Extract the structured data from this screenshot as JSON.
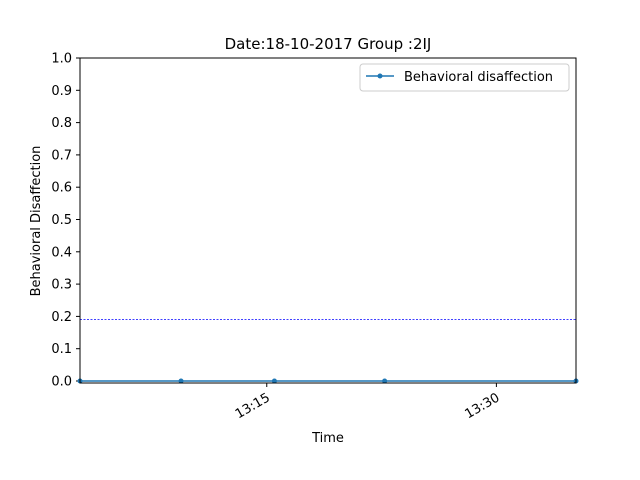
{
  "chart_data": {
    "type": "line",
    "title": "Date:18-10-2017 Group :2IJ",
    "xlabel": "Time",
    "ylabel": "Behavioral Disaffection",
    "x_unit": "time of day",
    "xlim": [
      "13:02:48",
      "13:35:12"
    ],
    "ylim": [
      0.0,
      1.0
    ],
    "yticks": [
      "0.0",
      "0.1",
      "0.2",
      "0.3",
      "0.4",
      "0.5",
      "0.6",
      "0.7",
      "0.8",
      "0.9",
      "1.0"
    ],
    "xticks": [
      "13:15",
      "13:30"
    ],
    "grid": false,
    "legend_position": "top-right",
    "series": [
      {
        "name": "Behavioral disaffection",
        "color": "#1f77b4",
        "marker": "circle",
        "x": [
          "13:02:48",
          "13:09:24",
          "13:15:30",
          "13:22:42",
          "13:35:12"
        ],
        "y": [
          0.0,
          0.0,
          0.0,
          0.0,
          0.0
        ]
      }
    ],
    "reference_line": {
      "y": 0.19,
      "color": "#0000ff",
      "style": "dashed"
    }
  }
}
